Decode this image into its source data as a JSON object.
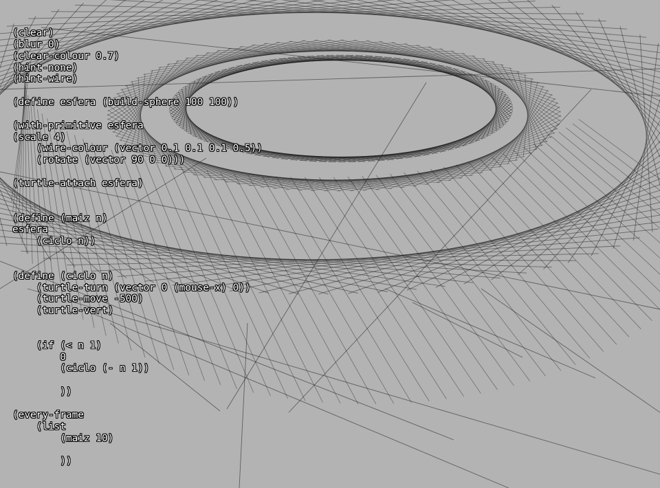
{
  "window": {
    "background": "#b3b3b3",
    "text_color": "#ffffff",
    "text_outline_color": "#000000",
    "wire_color": "#1a1a1a"
  },
  "editor": {
    "lines": [
      "(clear)",
      "(blur 0)",
      "(clear-colour 0.7)",
      "(hint-none)",
      "(hint-wire)",
      "",
      "(define esfera (build-sphere 100 100))",
      "",
      "(with-primitive esfera",
      "(scale 4)",
      "    (wire-colour (vector 0.1 0.1 0.1 0.5))",
      "    (rotate (vector 90 0 0)))",
      "",
      "(turtle-attach esfera)",
      "",
      "",
      "(define (maiz n)",
      "esfera",
      "    (ciclo n))",
      "",
      "",
      "(define (ciclo n)",
      "    (turtle-turn (vector 0 (mouse-x) 0))",
      "    (turtle-move -500)",
      "    (turtle-vert)",
      "",
      "",
      "    (if (< n 1)",
      "        0",
      "        (ciclo (- n 1))",
      "",
      "        ))",
      "",
      "(every-frame",
      "    (list",
      "        (maiz 10)",
      "",
      "        ))"
    ]
  }
}
